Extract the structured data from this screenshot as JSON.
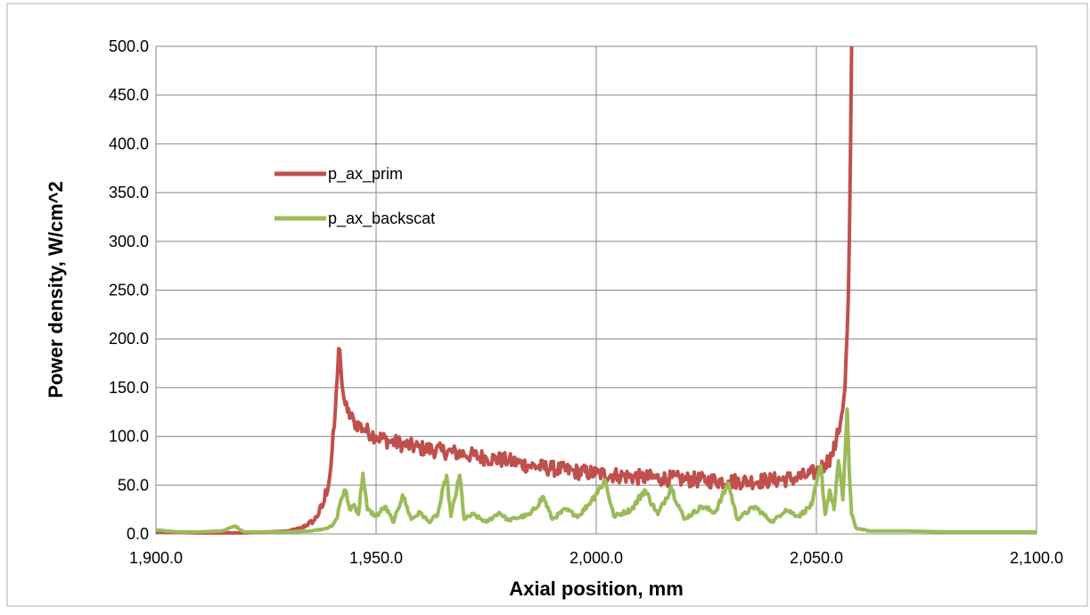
{
  "chart_data": {
    "type": "line",
    "title": "",
    "xlabel": "Axial position, mm",
    "ylabel": "Power density, W/cm^2",
    "xlim": [
      1900,
      2100
    ],
    "ylim": [
      0,
      500
    ],
    "x_ticks": [
      1900,
      1950,
      2000,
      2050,
      2100
    ],
    "x_tick_labels": [
      "1,900.0",
      "1,950.0",
      "2,000.0",
      "2,050.0",
      "2,100.0"
    ],
    "y_ticks": [
      0,
      50,
      100,
      150,
      200,
      250,
      300,
      350,
      400,
      450,
      500
    ],
    "y_tick_labels": [
      "0.0",
      "50.0",
      "100.0",
      "150.0",
      "200.0",
      "250.0",
      "300.0",
      "350.0",
      "400.0",
      "450.0",
      "500.0"
    ],
    "grid": true,
    "legend_position": "left",
    "series": [
      {
        "name": "p_ax_prim",
        "color": "#c0504d",
        "points": [
          [
            1900,
            2
          ],
          [
            1910,
            1
          ],
          [
            1920,
            1
          ],
          [
            1925,
            2
          ],
          [
            1930,
            3
          ],
          [
            1933,
            6
          ],
          [
            1936,
            14
          ],
          [
            1938,
            30
          ],
          [
            1939.5,
            60
          ],
          [
            1940.5,
            110
          ],
          [
            1941.2,
            160
          ],
          [
            1941.6,
            200
          ],
          [
            1942,
            170
          ],
          [
            1942.6,
            140
          ],
          [
            1943.5,
            125
          ],
          [
            1945,
            115
          ],
          [
            1947,
            108
          ],
          [
            1950,
            100
          ],
          [
            1953,
            95
          ],
          [
            1956,
            92
          ],
          [
            1960,
            88
          ],
          [
            1965,
            85
          ],
          [
            1970,
            82
          ],
          [
            1975,
            78
          ],
          [
            1980,
            75
          ],
          [
            1985,
            70
          ],
          [
            1990,
            67
          ],
          [
            1995,
            64
          ],
          [
            2000,
            62
          ],
          [
            2005,
            60
          ],
          [
            2010,
            58
          ],
          [
            2015,
            57
          ],
          [
            2020,
            56
          ],
          [
            2025,
            55
          ],
          [
            2030,
            54
          ],
          [
            2035,
            54
          ],
          [
            2040,
            55
          ],
          [
            2045,
            57
          ],
          [
            2048,
            60
          ],
          [
            2050,
            64
          ],
          [
            2052,
            72
          ],
          [
            2053.5,
            80
          ],
          [
            2054.5,
            95
          ],
          [
            2055.5,
            115
          ],
          [
            2056.5,
            150
          ],
          [
            2057.2,
            230
          ],
          [
            2057.6,
            330
          ],
          [
            2058,
            500
          ]
        ],
        "noise": 8
      },
      {
        "name": "p_ax_backscat",
        "color": "#9bbb59",
        "points": [
          [
            1900,
            4
          ],
          [
            1905,
            2
          ],
          [
            1910,
            2
          ],
          [
            1915,
            3
          ],
          [
            1918,
            8
          ],
          [
            1920,
            2
          ],
          [
            1925,
            2
          ],
          [
            1930,
            2
          ],
          [
            1935,
            3
          ],
          [
            1938,
            5
          ],
          [
            1940,
            8
          ],
          [
            1941,
            15
          ],
          [
            1942,
            35
          ],
          [
            1943,
            45
          ],
          [
            1944,
            25
          ],
          [
            1945,
            30
          ],
          [
            1946,
            20
          ],
          [
            1947,
            62
          ],
          [
            1948,
            25
          ],
          [
            1950,
            18
          ],
          [
            1952,
            28
          ],
          [
            1954,
            12
          ],
          [
            1956,
            40
          ],
          [
            1958,
            15
          ],
          [
            1960,
            22
          ],
          [
            1962,
            12
          ],
          [
            1964,
            20
          ],
          [
            1966,
            60
          ],
          [
            1967,
            18
          ],
          [
            1969,
            60
          ],
          [
            1970,
            15
          ],
          [
            1972,
            20
          ],
          [
            1975,
            12
          ],
          [
            1978,
            22
          ],
          [
            1980,
            14
          ],
          [
            1985,
            20
          ],
          [
            1988,
            38
          ],
          [
            1990,
            15
          ],
          [
            1993,
            25
          ],
          [
            1996,
            18
          ],
          [
            1999,
            35
          ],
          [
            2002,
            55
          ],
          [
            2004,
            18
          ],
          [
            2008,
            25
          ],
          [
            2011,
            45
          ],
          [
            2014,
            20
          ],
          [
            2017,
            48
          ],
          [
            2020,
            15
          ],
          [
            2024,
            28
          ],
          [
            2027,
            22
          ],
          [
            2030,
            52
          ],
          [
            2032,
            15
          ],
          [
            2036,
            28
          ],
          [
            2040,
            12
          ],
          [
            2043,
            25
          ],
          [
            2046,
            18
          ],
          [
            2049,
            30
          ],
          [
            2051,
            70
          ],
          [
            2052,
            20
          ],
          [
            2053,
            45
          ],
          [
            2054,
            25
          ],
          [
            2055,
            75
          ],
          [
            2056,
            35
          ],
          [
            2057,
            128
          ],
          [
            2057.5,
            60
          ],
          [
            2058,
            20
          ],
          [
            2059,
            6
          ],
          [
            2062,
            3
          ],
          [
            2065,
            3
          ],
          [
            2070,
            3
          ],
          [
            2080,
            2
          ],
          [
            2090,
            2
          ],
          [
            2100,
            2
          ]
        ],
        "noise": 4
      }
    ]
  }
}
